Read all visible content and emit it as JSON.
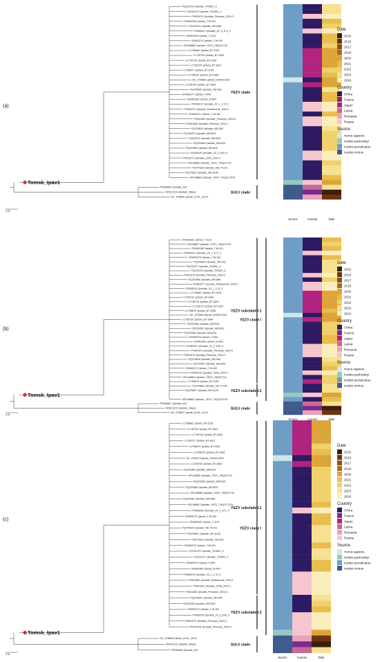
{
  "colors": {
    "source": {
      "Homo sapiens": "#cfe7e8",
      "Ixodes pavlovskyi": "#96c8c4",
      "Ixodes persulcatus": "#6e9dc6",
      "Ixodes ricinus": "#3f5b8c"
    },
    "country": {
      "China": "#2e1a63",
      "France": "#7b2b8b",
      "Japan": "#b0237f",
      "Latvia": "#c86a98",
      "Romania": "#e6a4bc",
      "Russia": "#f6c6d0"
    },
    "date": {
      "2010": "#3d1d0c",
      "2016": "#6b3510",
      "2017": "#8f4d17",
      "2018": "#ad6a1f",
      "2019": "#c8892a",
      "2020": "#dda43a",
      "2021": "#e9bd4e",
      "2022": "#f0d16b",
      "2023": "#f6e192",
      "2024": "#fbeebc"
    },
    "marker": "#e8261f"
  },
  "legend": {
    "date_title": "Date",
    "date_items": [
      "2010",
      "2016",
      "2017",
      "2018",
      "2020",
      "2021",
      "2022",
      "2023",
      "2024"
    ],
    "country_title": "Country",
    "country_items": [
      "China",
      "France",
      "Japan",
      "Latvia",
      "Romania",
      "Russia"
    ],
    "source_title": "Source",
    "source_items": [
      "Homo sapiens",
      "Ixodes pavlovskyi",
      "Ixodes persulcatus",
      "Ixodes ricinus"
    ]
  },
  "columns": [
    "Source",
    "Country",
    "Date"
  ],
  "panels": [
    {
      "label": "(a)",
      "scale_label": "0.01",
      "tips": [
        [
          "PQ231078 1|isolate_TIGMIC_5",
          "Ixodes persulcatus",
          "China",
          "2023"
        ],
        [
          "PQ231079 1|isolate_TIGMIC_4",
          "Ixodes persulcatus",
          "China",
          "2023"
        ],
        [
          "PV061570 1|isolate_Primorye_2024-3",
          "Ixodes persulcatus",
          "Russia",
          "2024"
        ],
        [
          "ON063298 1|strain_T-HLJ01",
          "Ixodes persulcatus",
          "China",
          "2021"
        ],
        [
          "PQ220371 1|isolate_MDJ486",
          "Ixodes persulcatus",
          "China",
          "2022"
        ],
        [
          "PV083021 1|isolate_24_2_K71_2",
          "Ixodes persulcatus",
          "Russia",
          "2024"
        ],
        [
          "ON063280 1|strain_T-JL01",
          "Ixodes persulcatus",
          "China",
          "2021"
        ],
        [
          "ON063274 1|strain_T-HLJ03",
          "Ixodes persulcatus",
          "China",
          "2021"
        ],
        [
          "OR148886 1|isolate_YEZV_YBQG1739",
          "Ixodes persulcatus",
          "China",
          "2022"
        ],
        [
          "LC796680 1|strain_BT-2155",
          "Ixodes persulcatus",
          "Japan",
          "2020"
        ],
        [
          "LC735733 1|strain_BT-1844",
          "Ixodes persulcatus",
          "Japan",
          "2020"
        ],
        [
          "LC735726 1|strain_BT-1826",
          "Ixodes persulcatus",
          "Japan",
          "2020"
        ],
        [
          "LC735725 1|strain_BT-1821",
          "Ixodes persulcatus",
          "Japan",
          "2020"
        ],
        [
          "LC796677 1|strain_BT-2135",
          "Ixodes persulcatus",
          "Japan",
          "2022"
        ],
        [
          "LC796676 1|strain_BT-1968",
          "Ixodes persulcatus",
          "Japan",
          "2021"
        ],
        [
          "NC_079086 1|strain_HH003-2020",
          "Homo sapiens",
          "China",
          "2020"
        ],
        [
          "LC735734 1|strain_BT-1864",
          "Ixodes persulcatus",
          "Japan",
          "2020"
        ],
        [
          "PQ475625 1|isolate_NE-WQ",
          "Ixodes persulcatus",
          "China",
          "2023"
        ],
        [
          "ON063277 1|strain_T-M01",
          "Ixodes persulcatus",
          "China",
          "2021"
        ],
        [
          "ON063283 1|strain_H-M01",
          "Ixodes persulcatus",
          "China",
          "2021"
        ],
        [
          "PV083017 1|isolate_24_L_3_R_2",
          "Ixodes persulcatus",
          "Russia",
          "2024"
        ],
        [
          "PV061572 1|isolate_Khabarovsk_2024-1",
          "Ixodes persulcatus",
          "Russia",
          "2024"
        ],
        [
          "ON063271 1|strain_T-HLJ02",
          "Ixodes persulcatus",
          "China",
          "2021"
        ],
        [
          "PV061569 1|isolate_Primorye_2024-2",
          "Ixodes persulcatus",
          "Russia",
          "2024"
        ],
        [
          "PV061568 1|isolate_Primorye_2024-1",
          "Ixodes persulcatus",
          "Russia",
          "2024"
        ],
        [
          "PQ475624 1|isolate_NE-DN2",
          "Ixodes persulcatus",
          "China",
          "2023"
        ],
        [
          "PQ220370 1|isolate_MDJ209",
          "Ixodes persulcatus",
          "China",
          "2022"
        ],
        [
          "PQ220372 1|isolate_MDJ025",
          "Ixodes persulcatus",
          "China",
          "2022"
        ],
        [
          "PQ220368 1|isolate_MDJ003",
          "Ixodes persulcatus",
          "China",
          "2022"
        ],
        [
          "PQ220369 1|isolate_MDJ014",
          "Ixodes persulcatus",
          "China",
          "2022"
        ],
        [
          "PV083040 1|isolate_24_2_K43_5",
          "Ixodes persulcatus",
          "Russia",
          "2024"
        ],
        [
          "PV061571 1|isolate_Chita_2024-1",
          "Ixodes persulcatus",
          "Russia",
          "2024"
        ],
        [
          "OR148885 1|isolate_YEZV_YBQG1712",
          "Ixodes persulcatus",
          "China",
          "2022"
        ],
        [
          "PQ475623 1|isolate_NE-YTLH1",
          "Ixodes persulcatus",
          "China",
          "2023"
        ],
        [
          "PQ475622 1|isolate_NE-ALH2",
          "Ixodes persulcatus",
          "China",
          "2023"
        ],
        [
          "OR148883 1|isolate_YEZV_THQG17078",
          "Ixodes persulcatus",
          "China",
          "2021"
        ],
        [
          "Tomsk_Ipav1",
          "Ixodes pavlovskyi",
          "Russia",
          "2020"
        ],
        [
          "PP266806 1|isolate_b31",
          "Ixodes ricinus",
          "Latvia",
          "2023"
        ],
        [
          "OR613124 1|isolate_Alsace",
          "Ixodes ricinus",
          "France",
          "2010"
        ],
        [
          "NC_078896 1|strain_brrSL_16-01",
          "Ixodes ricinus",
          "Romania",
          "2016"
        ]
      ],
      "clades": [
        {
          "name": "YEZV clade",
          "from": 0,
          "to": 35
        },
        {
          "name": "SULV clade",
          "from": 37,
          "to": 39
        }
      ]
    },
    {
      "label": "(b)",
      "scale_label": "0.01",
      "tips": [
        [
          "ON063281 1|strain_T-JL01",
          "Ixodes persulcatus",
          "China",
          "2021"
        ],
        [
          "OR148887 1|isolate_YEZV_YBQG1739",
          "Ixodes persulcatus",
          "China",
          "2022"
        ],
        [
          "ON063288 1|strain_T-HLJ01",
          "Ixodes persulcatus",
          "China",
          "2021"
        ],
        [
          "PV083021 1|isolate_24_2_K71_2",
          "Ixodes persulcatus",
          "Russia",
          "2024"
        ],
        [
          "ON063275 1|strain_T-HLJ03",
          "Ixodes persulcatus",
          "China",
          "2021"
        ],
        [
          "PQ475624 1|isolate_NE-WQ",
          "Ixodes persulcatus",
          "China",
          "2023"
        ],
        [
          "PQ231077 1|isolate_TIGMIC_3",
          "Ixodes persulcatus",
          "China",
          "2023"
        ],
        [
          "PQ231078 1|isolate_TIGMIC_4",
          "Ixodes persulcatus",
          "China",
          "2023"
        ],
        [
          "PV061575 1|isolate_Primorye_2024-3",
          "Ixodes persulcatus",
          "Russia",
          "2024"
        ],
        [
          "PQ220368 1|isolate_MDJ486",
          "Ixodes persulcatus",
          "China",
          "2022"
        ],
        [
          "PV061577 1|isolate_Khabarovsk_2024-1",
          "Ixodes persulcatus",
          "Russia",
          "2024"
        ],
        [
          "PV083016 1|isolate_24_L_3_R_2",
          "Ixodes persulcatus",
          "Russia",
          "2024"
        ],
        [
          "LC796681 1|strain_BT-2155",
          "Ixodes persulcatus",
          "Japan",
          "2020"
        ],
        [
          "LC735732 1|strain_BT-1844",
          "Ixodes persulcatus",
          "Japan",
          "2020"
        ],
        [
          "LC735728 1|strain_BT-1826",
          "Ixodes persulcatus",
          "Japan",
          "2020"
        ],
        [
          "LC735723 1|strain_BT-1821",
          "Ixodes persulcatus",
          "Japan",
          "2020"
        ],
        [
          "LC796675 1|strain_BT-1968",
          "Ixodes persulcatus",
          "Japan",
          "2021"
        ],
        [
          "NC_079086 1|strain_HH003-2020",
          "Homo sapiens",
          "China",
          "2020"
        ],
        [
          "LC735730 1|strain_BT-1864",
          "Ixodes persulcatus",
          "Japan",
          "2020"
        ],
        [
          "PQ220365 1|isolate_MDJ025",
          "Ixodes persulcatus",
          "China",
          "2022"
        ],
        [
          "PQ220363 1|isolate_MDJ003",
          "Ixodes persulcatus",
          "China",
          "2022"
        ],
        [
          "PQ220364 1|isolate_MDJ014",
          "Ixodes persulcatus",
          "China",
          "2022"
        ],
        [
          "ON063276 1|strain_T-M01",
          "Ixodes persulcatus",
          "China",
          "2021"
        ],
        [
          "ON063284 1|strain_H-M01",
          "Ixodes persulcatus",
          "China",
          "2021"
        ],
        [
          "PV083037 1|isolate_24_2_K43_5",
          "Ixodes persulcatus",
          "Russia",
          "2024"
        ],
        [
          "PV061574 1|isolate_Primorye_2024-2",
          "Ixodes persulcatus",
          "Russia",
          "2024"
        ],
        [
          "PV061573 1|isolate_Primorye_2024-1",
          "Ixodes persulcatus",
          "Russia",
          "2024"
        ],
        [
          "PQ475626 1|isolate_NE-DN2",
          "Ixodes persulcatus",
          "China",
          "2023"
        ],
        [
          "PQ220367 1|isolate_MDJ209",
          "Ixodes persulcatus",
          "China",
          "2022"
        ],
        [
          "ON063272 1|strain_T-HLJ02",
          "Ixodes persulcatus",
          "China",
          "2021"
        ],
        [
          "PV061576 1|isolate_Chita_2024-1",
          "Ixodes persulcatus",
          "Russia",
          "2024"
        ],
        [
          "OR148884 1|isolate_YEZV_YBQG1712",
          "Ixodes persulcatus",
          "China",
          "2022"
        ],
        [
          "LC796678 1|strain_BT-2135",
          "Ixodes persulcatus",
          "Japan",
          "2022"
        ],
        [
          "PQ475628 1|isolate_NE-YTLH1",
          "Ixodes persulcatus",
          "China",
          "2023"
        ],
        [
          "PQ475627 1|isolate_NE-ALH2",
          "Ixodes persulcatus",
          "China",
          "2023"
        ],
        [
          "Tomsk_Ipav1",
          "Ixodes pavlovskyi",
          "Russia",
          "2020"
        ],
        [
          "OR148881 1|isolate_YEZV_THQG17078",
          "Ixodes persulcatus",
          "China",
          "2021"
        ],
        [
          "PP266807 1|isolate_b31",
          "Ixodes ricinus",
          "Latvia",
          "2023"
        ],
        [
          "OR613123 1|isolate_Alsace",
          "Ixodes ricinus",
          "France",
          "2010"
        ],
        [
          "NC_078897 1|strain_brrSL_16-01",
          "Ixodes ricinus",
          "Romania",
          "2016"
        ]
      ],
      "clades": [
        {
          "name": "YEZV subclade I.1",
          "from": 0,
          "to": 32
        },
        {
          "name": "YEZV subclade I.2",
          "from": 33,
          "to": 35
        },
        {
          "name": "YEZV clade I",
          "from": 0,
          "to": 36,
          "outer": true
        },
        {
          "name": "SULV clade",
          "from": 37,
          "to": 39
        }
      ]
    },
    {
      "label": "(c)",
      "scale_label": "0.01",
      "tips": [
        [
          "LC796682 1|strain_BT-2155",
          "Ixodes persulcatus",
          "Japan",
          "2020"
        ],
        [
          "LC735733 1|strain_BT-1844",
          "Ixodes persulcatus",
          "Japan",
          "2020"
        ],
        [
          "LC735730 1|strain_BT-1826",
          "Ixodes persulcatus",
          "Japan",
          "2020"
        ],
        [
          "LC735727 1|strain_BT-1821",
          "Ixodes persulcatus",
          "Japan",
          "2020"
        ],
        [
          "LC796679 1|strain_BT-2135",
          "Ixodes persulcatus",
          "Japan",
          "2022"
        ],
        [
          "LC796676 1|strain_BT-1968",
          "Ixodes persulcatus",
          "Japan",
          "2021"
        ],
        [
          "NC_079103 1|strain_HH003-2020",
          "Homo sapiens",
          "China",
          "2020"
        ],
        [
          "LC735736 1|strain_BT-1864",
          "Ixodes persulcatus",
          "Japan",
          "2020"
        ],
        [
          "PQ220359 1|isolate_MDJ014",
          "Ixodes persulcatus",
          "China",
          "2022"
        ],
        [
          "OR148885 1|isolate_YEZV_YBQG1712",
          "Ixodes persulcatus",
          "China",
          "2022"
        ],
        [
          "PQ220360 1|isolate_MDJ025",
          "Ixodes persulcatus",
          "China",
          "2022"
        ],
        [
          "PQ220358 1|isolate_MDJ003",
          "Ixodes persulcatus",
          "China",
          "2022"
        ],
        [
          "OR148888 1|isolate_YEZV_YBQG1739",
          "Ixodes persulcatus",
          "China",
          "2022"
        ],
        [
          "PQ220361 1|isolate_MDJ486",
          "Ixodes persulcatus",
          "China",
          "2022"
        ],
        [
          "OR148882 1|isolate_YEZV_THQG17078",
          "Ixodes persulcatus",
          "China",
          "2021"
        ],
        [
          "PV083020 1|isolate_24_2_K71_4",
          "Ixodes persulcatus",
          "Russia",
          "2024"
        ],
        [
          "ON063276 1|strain_T-HLJ03",
          "Ixodes persulcatus",
          "China",
          "2021"
        ],
        [
          "ON063282 1|strain_T-JL01",
          "Ixodes persulcatus",
          "China",
          "2021"
        ],
        [
          "PQ475630 1|isolate_NE-YTLH1",
          "Ixodes persulcatus",
          "China",
          "2023"
        ],
        [
          "PQ475631 1|isolate_NE-ALH2",
          "Ixodes persulcatus",
          "China",
          "2023"
        ],
        [
          "PQ475633 1|isolate_NE-WQ",
          "Ixodes persulcatus",
          "China",
          "2023"
        ],
        [
          "ON063270 1|strain_T-HLJ01",
          "Ixodes persulcatus",
          "China",
          "2021"
        ],
        [
          "PQ231072 1|isolate_TIGMIC_5",
          "Ixodes persulcatus",
          "China",
          "2023"
        ],
        [
          "PQ231071 1|isolate_TIGMIC_4",
          "Ixodes persulcatus",
          "China",
          "2023"
        ],
        [
          "ON063279 1|strain_T-M01",
          "Ixodes persulcatus",
          "China",
          "2021"
        ],
        [
          "ON063285 1|strain_H-M01",
          "Ixodes persulcatus",
          "China",
          "2021"
        ],
        [
          "PV083015 1|isolate_24_L_3_R_4",
          "Ixodes persulcatus",
          "Russia",
          "2024"
        ],
        [
          "PV061582 1|isolate_Khabarovsk_2024-1",
          "Ixodes persulcatus",
          "Russia",
          "2024"
        ],
        [
          "PV061581 1|isolate_Chita_2024-1",
          "Ixodes persulcatus",
          "Russia",
          "2024"
        ],
        [
          "PV061580 1|isolate_Primorye_2024-3",
          "Ixodes persulcatus",
          "Russia",
          "2024"
        ],
        [
          "PQ475632 1|isolate_NE-DN2",
          "Ixodes persulcatus",
          "China",
          "2023"
        ],
        [
          "PQ220362 1|isolate_MDJ209",
          "Ixodes persulcatus",
          "China",
          "2022"
        ],
        [
          "ON063273 1|strain_T-HLJ02",
          "Ixodes persulcatus",
          "China",
          "2021"
        ],
        [
          "PV083035 1|isolate_24_2_K43_5",
          "Ixodes persulcatus",
          "Russia",
          "2024"
        ],
        [
          "PV061579 1|isolate_Primorye_2024-2",
          "Ixodes persulcatus",
          "Russia",
          "2024"
        ],
        [
          "PV061578 1|isolate_Primorye_2024-1",
          "Ixodes persulcatus",
          "Russia",
          "2024"
        ],
        [
          "Tomsk_Ipav1",
          "Ixodes pavlovskyi",
          "Russia",
          "2020"
        ],
        [
          "NC_078898 1|strain_brrSL_16-01",
          "Ixodes ricinus",
          "Romania",
          "2016"
        ],
        [
          "OR613122 1|isolate_Alsace",
          "Ixodes ricinus",
          "France",
          "2010"
        ],
        [
          "PP266808 1|isolate_b31",
          "Ixodes ricinus",
          "Latvia",
          "2023"
        ]
      ],
      "clades": [
        {
          "name": "YEZV subclade I.1",
          "from": 0,
          "to": 29
        },
        {
          "name": "YEZV subclade I.2",
          "from": 30,
          "to": 35
        },
        {
          "name": "YEZV clade I",
          "from": 0,
          "to": 36,
          "outer": true
        },
        {
          "name": "SULV clade",
          "from": 37,
          "to": 39
        }
      ]
    }
  ]
}
